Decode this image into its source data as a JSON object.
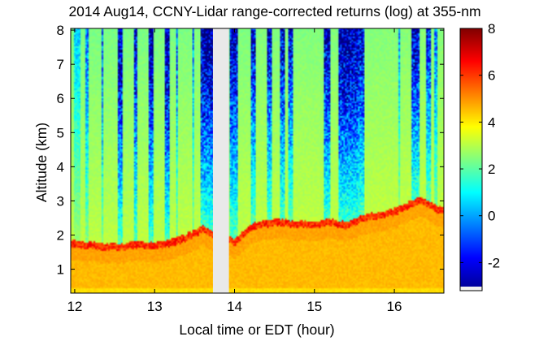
{
  "chart_data": {
    "type": "heatmap",
    "title": "2014 Aug14, CCNY-Lidar range-corrected returns (log) at 355-nm",
    "xlabel": "Local time or EDT (hour)",
    "ylabel": "Altitude (km)",
    "xlim": [
      11.95,
      16.62
    ],
    "ylim": [
      0.3,
      8.05
    ],
    "xticks": [
      "12",
      "13",
      "14",
      "15",
      "16"
    ],
    "yticks": [
      "1",
      "2",
      "3",
      "4",
      "5",
      "6",
      "7",
      "8"
    ],
    "colorbar": {
      "range": [
        -3.2,
        8
      ],
      "ticks": [
        "8",
        "6",
        "4",
        "2",
        "0",
        "-2"
      ],
      "colormap": "jet"
    },
    "data_gap": [
      13.73,
      13.93
    ],
    "boundary_layer_top_km": [
      {
        "x": 12.0,
        "y": 1.75
      },
      {
        "x": 12.3,
        "y": 1.7
      },
      {
        "x": 12.55,
        "y": 1.65
      },
      {
        "x": 12.8,
        "y": 1.75
      },
      {
        "x": 13.0,
        "y": 1.7
      },
      {
        "x": 13.2,
        "y": 1.8
      },
      {
        "x": 13.4,
        "y": 1.95
      },
      {
        "x": 13.6,
        "y": 2.2
      },
      {
        "x": 13.7,
        "y": 2.1
      },
      {
        "x": 14.0,
        "y": 1.8
      },
      {
        "x": 14.2,
        "y": 2.25
      },
      {
        "x": 14.5,
        "y": 2.4
      },
      {
        "x": 14.7,
        "y": 2.35
      },
      {
        "x": 15.0,
        "y": 2.3
      },
      {
        "x": 15.2,
        "y": 2.4
      },
      {
        "x": 15.4,
        "y": 2.3
      },
      {
        "x": 15.6,
        "y": 2.5
      },
      {
        "x": 15.8,
        "y": 2.6
      },
      {
        "x": 16.0,
        "y": 2.7
      },
      {
        "x": 16.2,
        "y": 2.9
      },
      {
        "x": 16.35,
        "y": 3.05
      },
      {
        "x": 16.55,
        "y": 2.75
      }
    ],
    "clear_air_columns": [
      {
        "x0": 12.0,
        "x1": 12.08,
        "strength": 0.3
      },
      {
        "x0": 12.14,
        "x1": 12.17,
        "strength": 0.5
      },
      {
        "x0": 12.33,
        "x1": 12.36,
        "strength": 0.6
      },
      {
        "x0": 12.53,
        "x1": 12.59,
        "strength": 0.9
      },
      {
        "x0": 12.74,
        "x1": 12.79,
        "strength": 0.8
      },
      {
        "x0": 12.92,
        "x1": 12.98,
        "strength": 0.9
      },
      {
        "x0": 13.12,
        "x1": 13.19,
        "strength": 0.95
      },
      {
        "x0": 13.27,
        "x1": 13.3,
        "strength": 0.6
      },
      {
        "x0": 13.47,
        "x1": 13.5,
        "strength": 0.5
      },
      {
        "x0": 13.58,
        "x1": 13.73,
        "strength": 1.0
      },
      {
        "x0": 13.93,
        "x1": 14.05,
        "strength": 0.85
      },
      {
        "x0": 14.2,
        "x1": 14.26,
        "strength": 0.8
      },
      {
        "x0": 14.4,
        "x1": 14.47,
        "strength": 0.85
      },
      {
        "x0": 14.56,
        "x1": 14.63,
        "strength": 0.9
      },
      {
        "x0": 14.68,
        "x1": 14.73,
        "strength": 0.8
      },
      {
        "x0": 15.12,
        "x1": 15.2,
        "strength": 0.95
      },
      {
        "x0": 15.3,
        "x1": 15.55,
        "strength": 1.0
      },
      {
        "x0": 15.55,
        "x1": 15.62,
        "strength": 0.9
      },
      {
        "x0": 16.05,
        "x1": 16.07,
        "strength": 0.5
      },
      {
        "x0": 16.22,
        "x1": 16.32,
        "strength": 0.95
      },
      {
        "x0": 16.4,
        "x1": 16.46,
        "strength": 0.8
      },
      {
        "x0": 16.5,
        "x1": 16.54,
        "strength": 0.6
      }
    ]
  }
}
